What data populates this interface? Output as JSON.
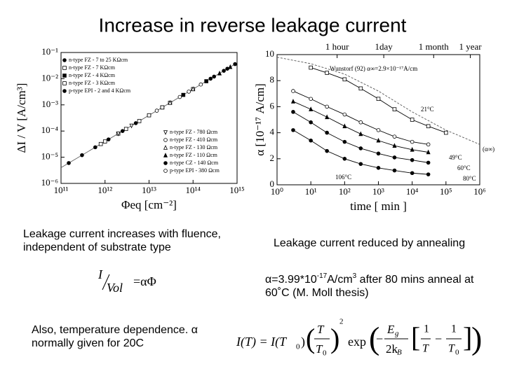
{
  "title": "Increase in reverse leakage current",
  "left_text": "Leakage current increases with fluence, independent of substrate type",
  "right_text": "Leakage current reduced by annealing",
  "alpha_note": {
    "lead": "α=3.99*10",
    "exp1": "-17",
    "mid": "A/cm",
    "exp2": "3",
    "tail": " after 80 mins anneal at 60˚C (M. Moll thesis)"
  },
  "temperature_note": "Also, temperature dependence. α normally given for 20C",
  "formula_1": {
    "numerator": "I",
    "denominator": "Vol",
    "rhs": "=αΦ"
  },
  "formula_2": {
    "parts": [
      "I(T) = I(T",
      "0",
      ")",
      "T",
      "T",
      "0",
      "2",
      "exp",
      "−",
      "E",
      "g",
      "2k",
      "B",
      "1",
      "T",
      "−",
      "1",
      "T",
      "0"
    ]
  },
  "chart_data": [
    {
      "type": "scatter",
      "xscale": "log",
      "yscale": "log",
      "xlabel": "Φeq [cm⁻²]",
      "ylabel": "ΔI / V  [A/cm³]",
      "xlim": [
        100000000000.0,
        1000000000000000.0
      ],
      "ylim": [
        1e-06,
        0.1
      ],
      "xticks": [
        {
          "value": 100000000000.0,
          "label": "10¹¹"
        },
        {
          "value": 1000000000000.0,
          "label": "10¹²"
        },
        {
          "value": 10000000000000.0,
          "label": "10¹³"
        },
        {
          "value": 100000000000000.0,
          "label": "10¹⁴"
        },
        {
          "value": 1000000000000000.0,
          "label": "10¹⁵"
        }
      ],
      "yticks": [
        {
          "value": 1e-06,
          "label": "10⁻⁶"
        },
        {
          "value": 1e-05,
          "label": "10⁻⁵"
        },
        {
          "value": 0.0001,
          "label": "10⁻⁴"
        },
        {
          "value": 0.001,
          "label": "10⁻³"
        },
        {
          "value": 0.01,
          "label": "10⁻²"
        },
        {
          "value": 0.1,
          "label": "10⁻¹"
        }
      ],
      "series": [
        {
          "name": "n-type FZ - 7 to 25 KΩcm",
          "color": "#000000",
          "marker": "circle",
          "filled": true,
          "legend": "upper left",
          "x": [
            150000000000.0,
            300000000000.0,
            600000000000.0,
            1200000000000.0,
            2500000000000.0,
            5000000000000.0,
            10000000000000.0
          ],
          "values": [
            6e-06,
            1.2e-05,
            2.4e-05,
            4.8e-05,
            0.0001,
            0.0002,
            0.0004
          ]
        },
        {
          "name": "n-type FZ - 7 KΩcm",
          "color": "#000000",
          "marker": "square",
          "filled": false,
          "legend": "upper left",
          "x": [
            1000000000000.0,
            3000000000000.0,
            10000000000000.0,
            30000000000000.0,
            100000000000000.0
          ],
          "values": [
            4e-05,
            0.00012,
            0.0004,
            0.0012,
            0.004
          ]
        },
        {
          "name": "n-type FZ - 4 KΩcm",
          "color": "#000000",
          "marker": "square",
          "filled": true,
          "legend": "upper left",
          "x": [
            20000000000000.0,
            60000000000000.0,
            200000000000000.0
          ],
          "values": [
            0.0008,
            0.0024,
            0.008
          ]
        },
        {
          "name": "n-type FZ - 3 KΩcm",
          "color": "#000000",
          "marker": "square",
          "filled": false,
          "legend": "upper left",
          "x": [
            800000000000.0,
            2000000000000.0,
            6000000000000.0,
            20000000000000.0
          ],
          "values": [
            3.2e-05,
            8e-05,
            0.00024,
            0.0008
          ]
        },
        {
          "name": "p-type EPI - 2 and 4 KΩcm",
          "color": "#000000",
          "marker": "circle",
          "filled": true,
          "legend": "upper left",
          "x": [
            300000000000000.0,
            600000000000000.0,
            900000000000000.0
          ],
          "values": [
            0.012,
            0.024,
            0.036
          ]
        },
        {
          "name": "n-type FZ - 780 Ωcm",
          "color": "#000000",
          "marker": "triangle-down",
          "filled": false,
          "legend": "lower right",
          "x": [
            2000000000000.0,
            4000000000000.0
          ],
          "values": [
            8e-05,
            0.00016
          ]
        },
        {
          "name": "n-type FZ - 410 Ωcm",
          "color": "#000000",
          "marker": "circle",
          "filled": false,
          "legend": "lower right",
          "x": [
            50000000000000.0,
            150000000000000.0
          ],
          "values": [
            0.002,
            0.006
          ]
        },
        {
          "name": "n-type FZ - 130 Ωcm",
          "color": "#000000",
          "marker": "triangle",
          "filled": false,
          "legend": "lower right",
          "x": [
            30000000000000.0,
            100000000000000.0
          ],
          "values": [
            0.0012,
            0.004
          ]
        },
        {
          "name": "n-type FZ - 110 Ωcm",
          "color": "#000000",
          "marker": "triangle",
          "filled": true,
          "legend": "lower right",
          "x": [
            400000000000000.0,
            700000000000000.0
          ],
          "values": [
            0.016,
            0.028
          ]
        },
        {
          "name": "n-type CZ - 140 Ωcm",
          "color": "#000000",
          "marker": "circle",
          "filled": true,
          "legend": "lower right",
          "x": [
            250000000000000.0,
            500000000000000.0
          ],
          "values": [
            0.01,
            0.02
          ]
        },
        {
          "name": "p-type EPI - 380 Ωcm",
          "color": "#000000",
          "marker": "circle",
          "filled": false,
          "legend": "lower right",
          "x": [
            15000000000000.0,
            80000000000000.0
          ],
          "values": [
            0.0006,
            0.0032
          ]
        }
      ]
    },
    {
      "type": "line",
      "xscale": "log",
      "yscale": "linear",
      "xlabel": "time  [ min ]",
      "ylabel": "α  [10⁻¹⁷ A/cm]",
      "xlim": [
        1,
        1000000.0
      ],
      "ylim": [
        0,
        10
      ],
      "xticks": [
        {
          "value": 1,
          "label": "10⁰"
        },
        {
          "value": 10,
          "label": "10¹"
        },
        {
          "value": 100,
          "label": "10²"
        },
        {
          "value": 1000,
          "label": "10³"
        },
        {
          "value": 10000,
          "label": "10⁴"
        },
        {
          "value": 100000,
          "label": "10⁵"
        },
        {
          "value": 1000000,
          "label": "10⁶"
        }
      ],
      "yticks": [
        0,
        2,
        4,
        6,
        8,
        10
      ],
      "x2ticks": [
        {
          "value": 60,
          "label": "1 hour"
        },
        {
          "value": 1440,
          "label": "1day"
        },
        {
          "value": 43200,
          "label": "1 month"
        },
        {
          "value": 525600,
          "label": "1 year"
        }
      ],
      "annotation": "(α∞)",
      "series": [
        {
          "name": "Wunstorf (92)  α∞=2.9×10⁻¹⁷A/cm",
          "color": "#555555",
          "marker": "none",
          "line_style": "dashed",
          "x": [
            1,
            10,
            100,
            1000,
            10000,
            100000,
            1000000
          ],
          "values": [
            9.8,
            9.3,
            8.5,
            7.2,
            5.6,
            4.2,
            3.1
          ]
        },
        {
          "name": "21°C",
          "color": "#000000",
          "marker": "square",
          "filled": false,
          "line_style": "solid",
          "x": [
            10,
            30,
            100,
            300,
            1000,
            3000,
            10000,
            30000,
            100000
          ],
          "values": [
            9.0,
            8.6,
            8.1,
            7.4,
            6.6,
            5.8,
            5.0,
            4.5,
            4.0
          ]
        },
        {
          "name": "49°C",
          "color": "#000000",
          "marker": "circle",
          "filled": false,
          "line_style": "solid",
          "x": [
            3,
            10,
            30,
            100,
            300,
            1000,
            3000,
            10000,
            30000
          ],
          "values": [
            7.2,
            6.6,
            6.0,
            5.4,
            4.8,
            4.2,
            3.7,
            3.3,
            3.1
          ]
        },
        {
          "name": "60°C",
          "color": "#000000",
          "marker": "triangle",
          "filled": true,
          "line_style": "solid",
          "x": [
            3,
            10,
            30,
            100,
            300,
            1000,
            3000,
            10000,
            30000
          ],
          "values": [
            6.4,
            5.8,
            5.2,
            4.5,
            3.9,
            3.4,
            3.0,
            2.7,
            2.5
          ]
        },
        {
          "name": "80°C",
          "color": "#000000",
          "marker": "circle",
          "filled": true,
          "line_style": "solid",
          "x": [
            3,
            10,
            30,
            100,
            300,
            1000,
            3000,
            10000,
            30000
          ],
          "values": [
            5.6,
            4.8,
            4.0,
            3.3,
            2.8,
            2.4,
            2.1,
            1.9,
            1.7
          ]
        },
        {
          "name": "106°C",
          "color": "#000000",
          "marker": "circle",
          "filled": true,
          "line_style": "solid",
          "x": [
            3,
            10,
            30,
            100,
            300,
            1000,
            3000,
            10000,
            30000
          ],
          "values": [
            4.2,
            3.4,
            2.6,
            2.0,
            1.6,
            1.3,
            1.1,
            0.9,
            0.8
          ]
        }
      ]
    }
  ]
}
